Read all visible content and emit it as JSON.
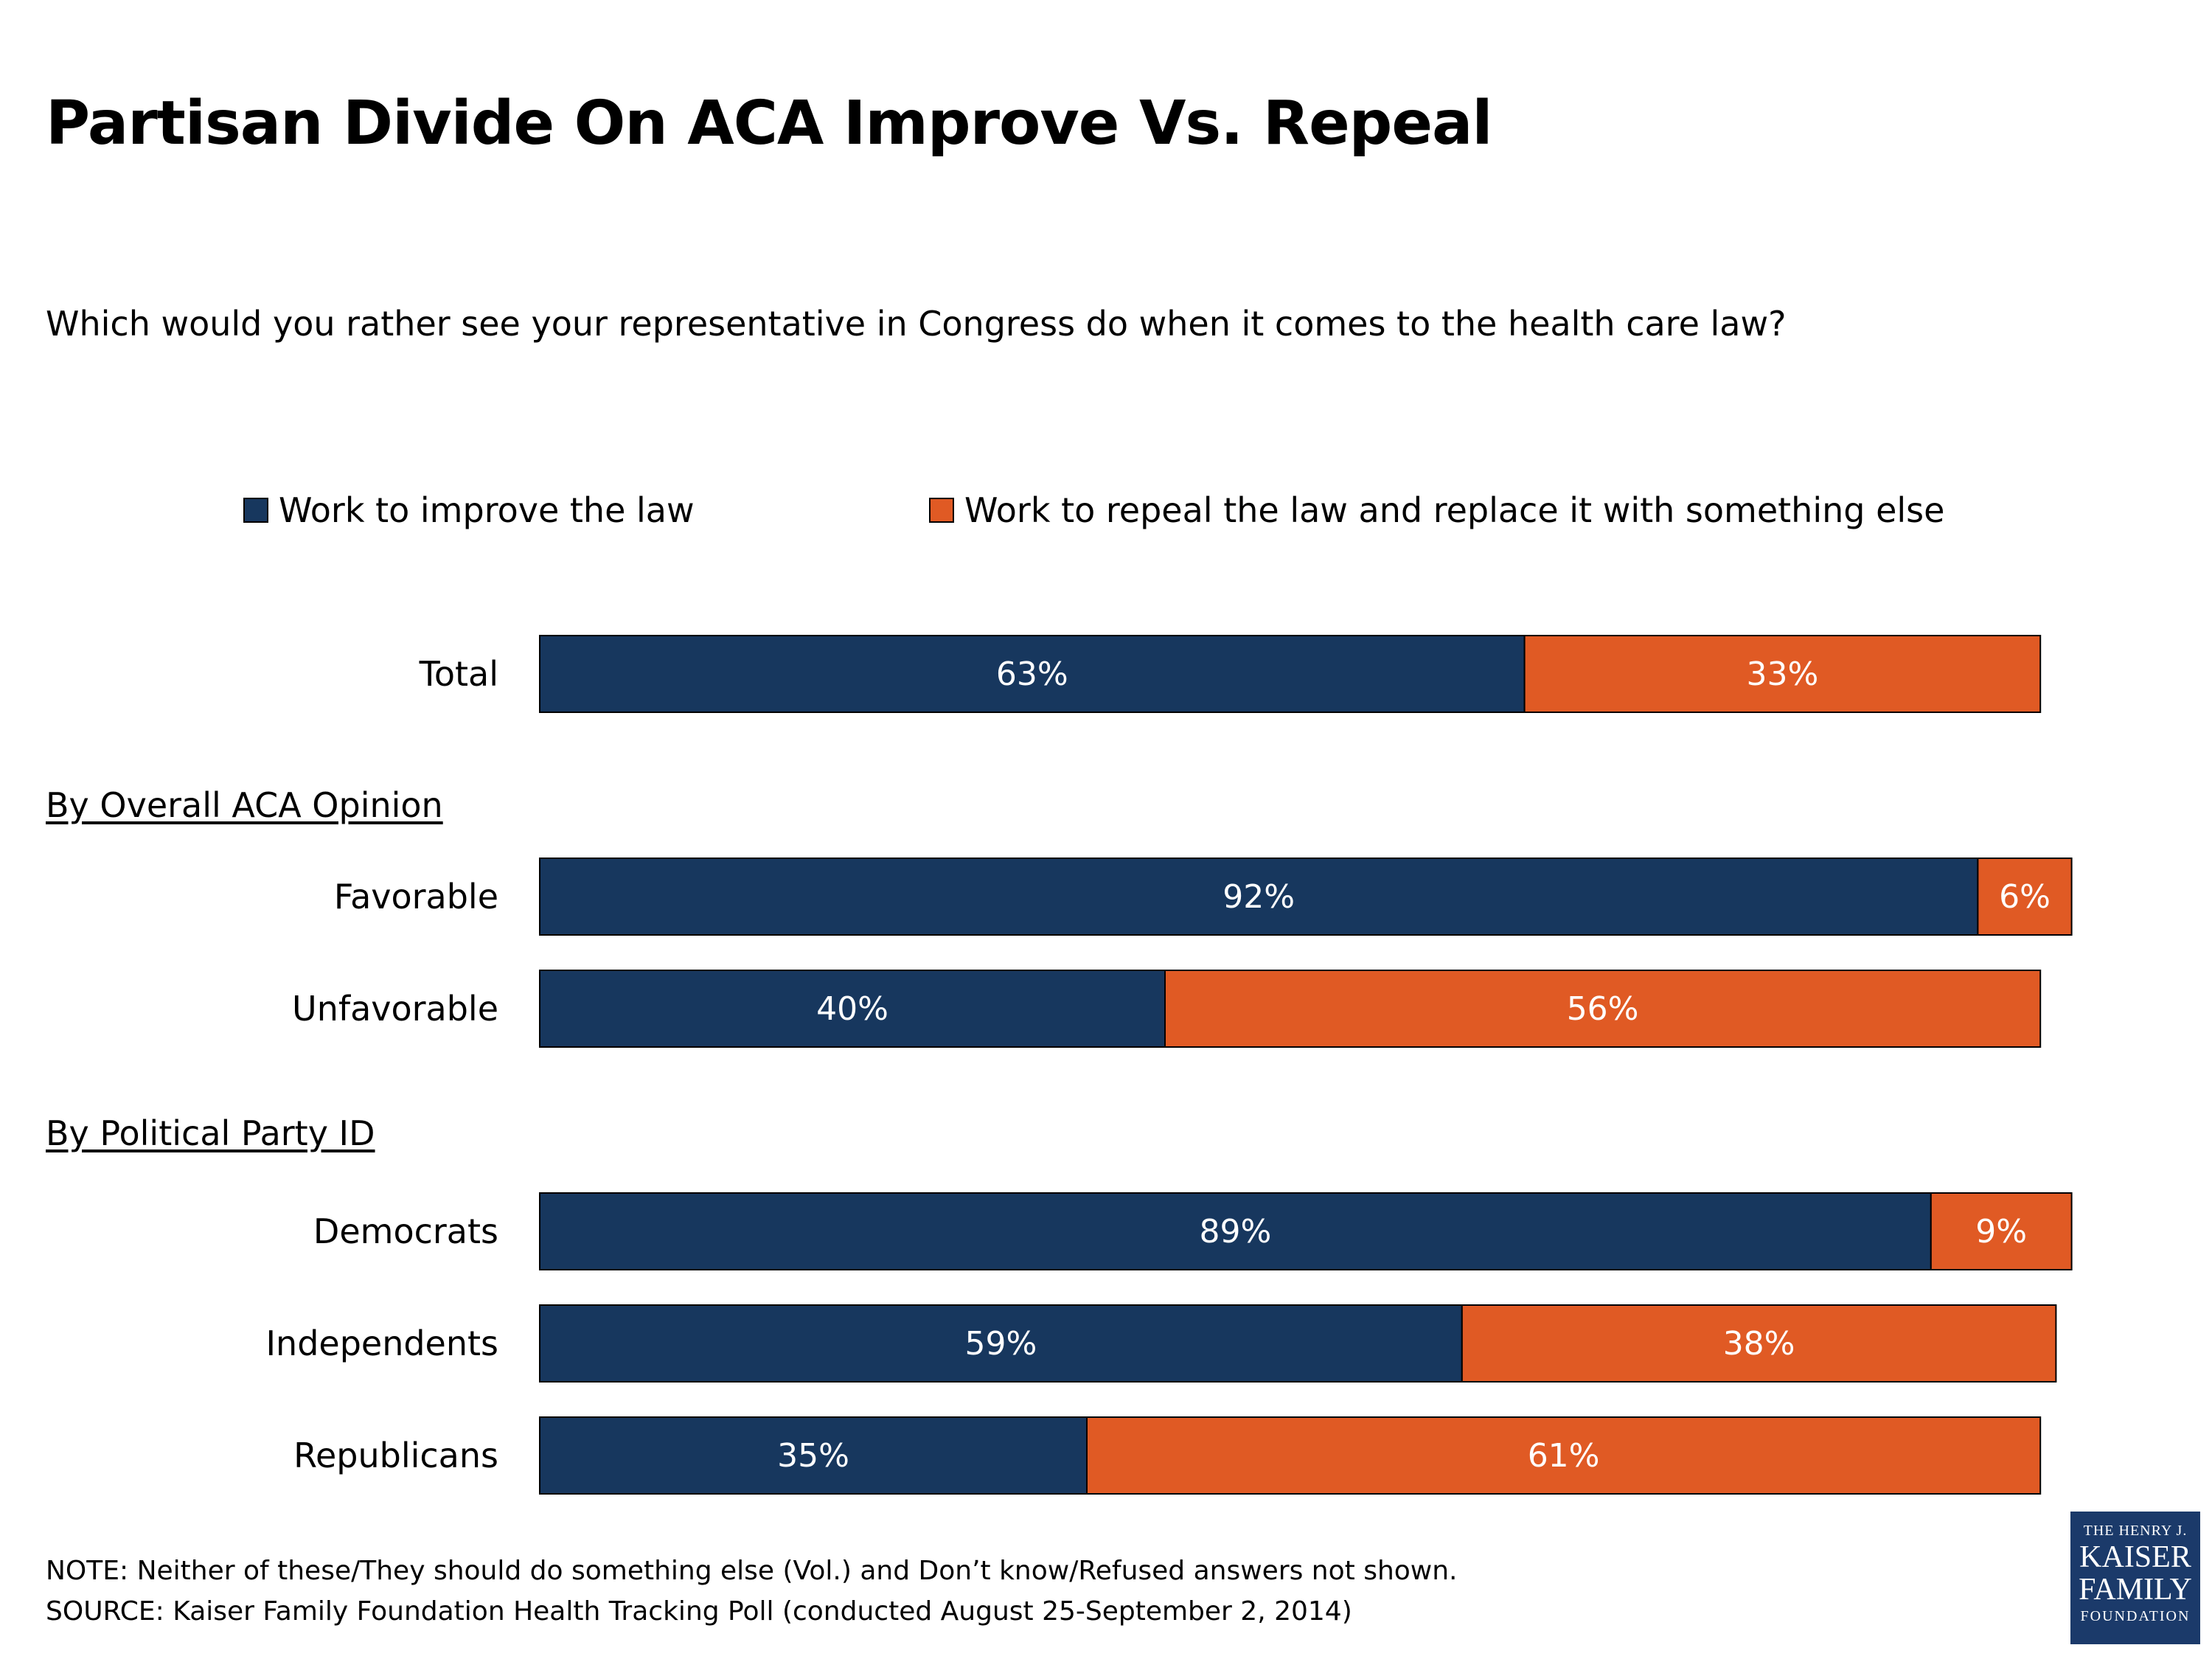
{
  "chart_data": {
    "type": "bar",
    "orientation": "horizontal",
    "stacked": true,
    "title": "Partisan Divide On ACA Improve Vs. Repeal",
    "subtitle": "Which would you rather see your representative in Congress do when it comes to the health care law?",
    "legend_placement": "top",
    "grid": false,
    "xlim": [
      0,
      100
    ],
    "series": [
      {
        "name": "Work to improve the law",
        "color": "#17375e"
      },
      {
        "name": "Work to repeal the law and replace it with something else",
        "color": "#e05a24"
      }
    ],
    "groups": [
      {
        "label": "",
        "categories": [
          {
            "label": "Total",
            "values": [
              63,
              33
            ]
          }
        ]
      },
      {
        "label": "By Overall ACA Opinion",
        "categories": [
          {
            "label": "Favorable",
            "values": [
              92,
              6
            ]
          },
          {
            "label": "Unfavorable",
            "values": [
              40,
              56
            ]
          }
        ]
      },
      {
        "label": "By Political Party ID",
        "categories": [
          {
            "label": "Democrats",
            "values": [
              89,
              9
            ]
          },
          {
            "label": "Independents",
            "values": [
              59,
              38
            ]
          },
          {
            "label": "Republicans",
            "values": [
              35,
              61
            ]
          }
        ]
      }
    ],
    "value_suffix": "%",
    "label_color": "#ffffff"
  },
  "notes": {
    "note": "NOTE: Neither of these/They should do something else (Vol.) and Don’t know/Refused answers not shown.",
    "source": "SOURCE: Kaiser Family Foundation Health Tracking Poll (conducted August 25-September 2, 2014)"
  },
  "logo": {
    "line1": "THE HENRY J.",
    "line2": "KAISER",
    "line3": "FAMILY",
    "line4": "FOUNDATION",
    "color": "#1b3a6a"
  }
}
